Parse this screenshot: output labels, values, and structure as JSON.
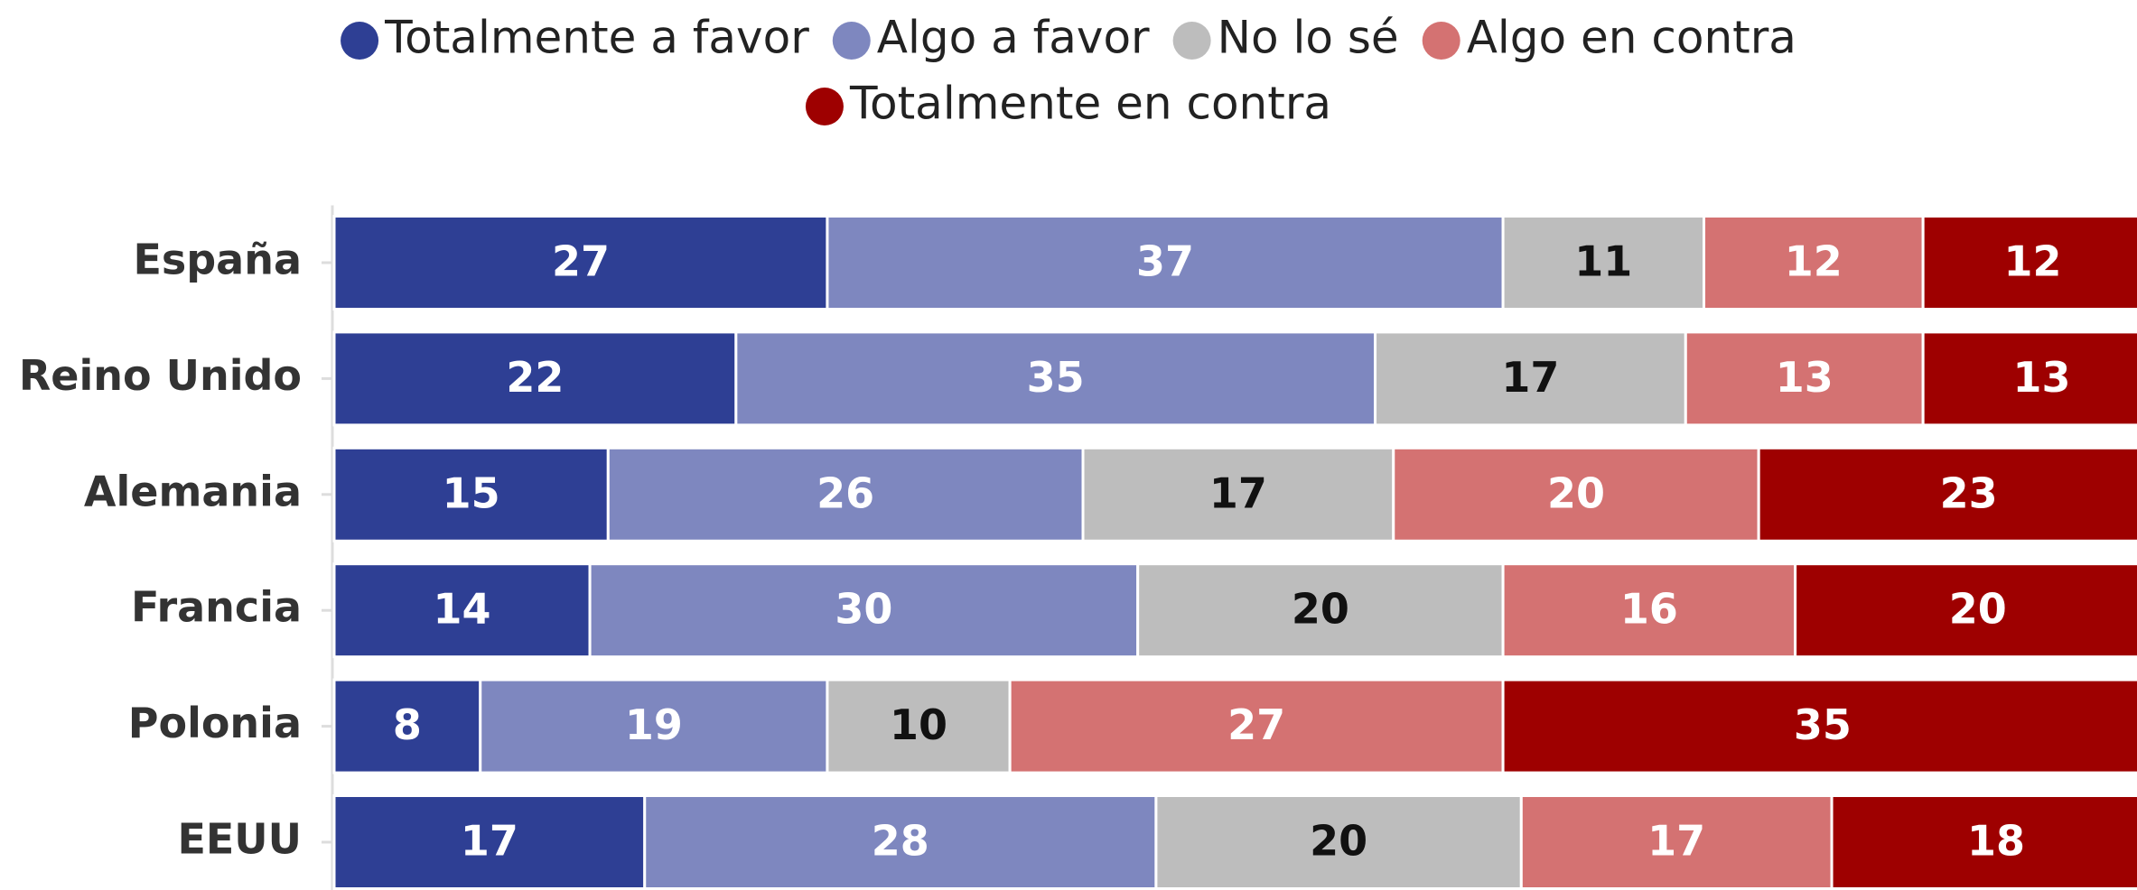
{
  "chart_data": {
    "type": "stacked-bar-horizontal",
    "categories": [
      "España",
      "Reino Unido",
      "Alemania",
      "Francia",
      "Polonia",
      "EEUU"
    ],
    "series": [
      {
        "name": "Totalmente a favor",
        "color": "#2e3f94",
        "values": [
          27,
          22,
          15,
          14,
          8,
          17
        ]
      },
      {
        "name": "Algo a favor",
        "color": "#7e87bf",
        "values": [
          37,
          35,
          26,
          30,
          19,
          28
        ]
      },
      {
        "name": "No lo sé",
        "color": "#bdbdbd",
        "values": [
          11,
          17,
          17,
          20,
          10,
          20
        ]
      },
      {
        "name": "Algo en contra",
        "color": "#d47272",
        "values": [
          12,
          13,
          20,
          16,
          27,
          17
        ]
      },
      {
        "name": "Totalmente en contra",
        "color": "#9e0000",
        "values": [
          12,
          13,
          23,
          20,
          35,
          18
        ]
      }
    ],
    "xlim": [
      0,
      100
    ],
    "legend": "top"
  }
}
